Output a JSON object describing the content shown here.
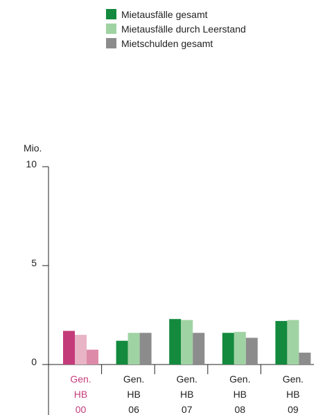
{
  "chart_data": {
    "type": "bar",
    "title": "",
    "xlabel": "",
    "ylabel": "Mio.",
    "ylim": [
      0,
      10
    ],
    "yticks": [
      0,
      5,
      10
    ],
    "grid": false,
    "legend_position": "top",
    "categories": [
      {
        "lines": [
          "Gen.",
          "HB",
          "00"
        ],
        "highlight": true
      },
      {
        "lines": [
          "Gen.",
          "HB",
          "06"
        ],
        "highlight": false
      },
      {
        "lines": [
          "Gen.",
          "HB",
          "07"
        ],
        "highlight": false
      },
      {
        "lines": [
          "Gen.",
          "HB",
          "08"
        ],
        "highlight": false
      },
      {
        "lines": [
          "Gen.",
          "HB",
          "09"
        ],
        "highlight": false
      }
    ],
    "series": [
      {
        "name": "Mietausfälle gesamt",
        "color": "#138a3d",
        "highlight_color": "#c43b7a",
        "values": [
          1.7,
          1.2,
          2.3,
          1.6,
          2.2
        ]
      },
      {
        "name": "Mietausfälle durch Leerstand",
        "color": "#a0d3a3",
        "highlight_color": "#e8b4c6",
        "values": [
          1.5,
          1.6,
          2.25,
          1.65,
          2.25
        ]
      },
      {
        "name": "Mietschulden gesamt",
        "color": "#8c8c8c",
        "highlight_color": "#dd8aa8",
        "values": [
          0.75,
          1.6,
          1.6,
          1.35,
          0.6
        ]
      }
    ],
    "colors": {
      "axis": "#222222",
      "text": "#222222",
      "highlight_text": "#c43b7a"
    }
  }
}
